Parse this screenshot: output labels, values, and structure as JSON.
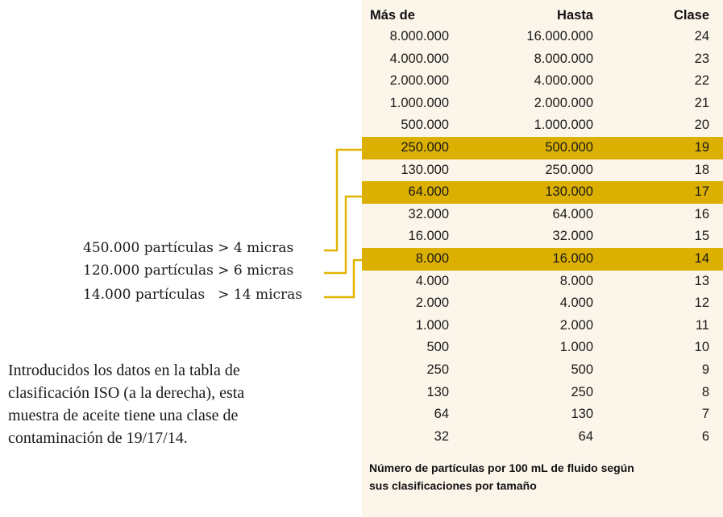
{
  "table": {
    "headers": {
      "from": "Más de",
      "to": "Hasta",
      "class": "Clase"
    },
    "rows": [
      {
        "from": "8.000.000",
        "to": "16.000.000",
        "class": "24"
      },
      {
        "from": "4.000.000",
        "to": "8.000.000",
        "class": "23"
      },
      {
        "from": "2.000.000",
        "to": "4.000.000",
        "class": "22"
      },
      {
        "from": "1.000.000",
        "to": "2.000.000",
        "class": "21"
      },
      {
        "from": "500.000",
        "to": "1.000.000",
        "class": "20"
      },
      {
        "from": "250.000",
        "to": "500.000",
        "class": "19",
        "highlighted": true
      },
      {
        "from": "130.000",
        "to": "250.000",
        "class": "18"
      },
      {
        "from": "64.000",
        "to": "130.000",
        "class": "17",
        "highlighted": true
      },
      {
        "from": "32.000",
        "to": "64.000",
        "class": "16"
      },
      {
        "from": "16.000",
        "to": "32.000",
        "class": "15"
      },
      {
        "from": "8.000",
        "to": "16.000",
        "class": "14",
        "highlighted": true
      },
      {
        "from": "4.000",
        "to": "8.000",
        "class": "13"
      },
      {
        "from": "2.000",
        "to": "4.000",
        "class": "12"
      },
      {
        "from": "1.000",
        "to": "2.000",
        "class": "11"
      },
      {
        "from": "500",
        "to": "1.000",
        "class": "10"
      },
      {
        "from": "250",
        "to": "500",
        "class": "9"
      },
      {
        "from": "130",
        "to": "250",
        "class": "8"
      },
      {
        "from": "64",
        "to": "130",
        "class": "7"
      },
      {
        "from": "32",
        "to": "64",
        "class": "6"
      }
    ],
    "caption_line1": "Número de partículas por 100 mL de fluido según",
    "caption_line2": "sus clasificaciones por tamaño"
  },
  "annotations": [
    "450.000 partículas > 4 micras",
    "120.000 partículas > 6 micras",
    "14.000 partículas   > 14 micras"
  ],
  "paragraph": {
    "line1": "Introducidos los datos en la tabla de",
    "line2": "clasificación ISO (a la derecha), esta",
    "line3": "muestra de aceite tiene una clase de",
    "line4": "contaminación de 19/17/14."
  },
  "colors": {
    "panel_bg": "#fcf5ea",
    "highlight": "#dbb000",
    "connector": "#e0b400"
  }
}
